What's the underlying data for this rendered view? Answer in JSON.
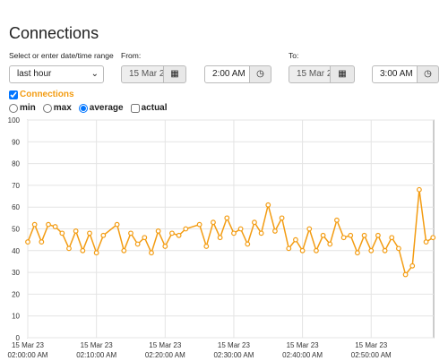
{
  "header": {
    "title": "Connections"
  },
  "range": {
    "label": "Select or enter date/time range",
    "selected": "last hour",
    "from_label": "From:",
    "from_date": "15 Mar 2",
    "from_time": "2:00 AM",
    "to_label": "To:",
    "to_date": "15 Mar 2",
    "to_time": "3:00 AM"
  },
  "series_checked": true,
  "modes": [
    {
      "label": "min",
      "control": "radio",
      "checked": false
    },
    {
      "label": "max",
      "control": "radio",
      "checked": false
    },
    {
      "label": "average",
      "control": "radio",
      "checked": true
    },
    {
      "label": "actual",
      "control": "checkbox",
      "checked": false
    }
  ],
  "chart_data": {
    "type": "line",
    "x": [
      0,
      1,
      2,
      3,
      4,
      5,
      6,
      7,
      8,
      9,
      10,
      11,
      13,
      14,
      15,
      16,
      17,
      18,
      19,
      20,
      21,
      22,
      23,
      25,
      26,
      27,
      28,
      29,
      30,
      31,
      32,
      33,
      34,
      35,
      36,
      37,
      38,
      39,
      40,
      41,
      42,
      43,
      44,
      45,
      46,
      47,
      48,
      49,
      50,
      51,
      52,
      53,
      54,
      55,
      56,
      57,
      58,
      59
    ],
    "series": [
      {
        "name": "Connections",
        "color": "#f39c12",
        "values": [
          44,
          52,
          44,
          52,
          51,
          48,
          41,
          49,
          40,
          48,
          39,
          47,
          52,
          40,
          48,
          43,
          46,
          39,
          49,
          42,
          48,
          47,
          50,
          52,
          42,
          53,
          46,
          55,
          48,
          50,
          43,
          53,
          48,
          61,
          49,
          55,
          41,
          45,
          40,
          50,
          40,
          47,
          43,
          54,
          46,
          47,
          39,
          47,
          40,
          47,
          40,
          46,
          41,
          29,
          33,
          68,
          44,
          46
        ]
      }
    ],
    "xlim": [
      0,
      59.1
    ],
    "xticks": [
      {
        "value": 0,
        "label": "15 Mar 23\n02:00:00 AM"
      },
      {
        "value": 10,
        "label": "15 Mar 23\n02:10:00 AM"
      },
      {
        "value": 20,
        "label": "15 Mar 23\n02:20:00 AM"
      },
      {
        "value": 30,
        "label": "15 Mar 23\n02:30:00 AM"
      },
      {
        "value": 40,
        "label": "15 Mar 23\n02:40:00 AM"
      },
      {
        "value": 50,
        "label": "15 Mar 23\n02:50:00 AM"
      }
    ],
    "ylim": [
      0,
      100
    ],
    "yticks": [
      0,
      10,
      20,
      30,
      40,
      50,
      60,
      70,
      80,
      90,
      100
    ],
    "grid": true
  }
}
